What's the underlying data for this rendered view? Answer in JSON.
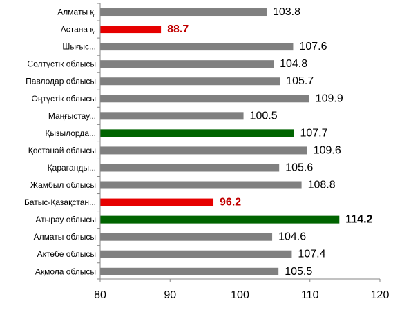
{
  "chart_data": {
    "type": "bar",
    "orientation": "horizontal",
    "title": "",
    "xlabel": "",
    "ylabel": "",
    "xlim": [
      80,
      120
    ],
    "xticks": [
      80,
      90,
      100,
      110,
      120
    ],
    "grid": false,
    "legend": "none",
    "categories": [
      "Алматы қ.",
      "Астана қ.",
      "Шығыс...",
      "Солтүстік облысы",
      "Павлодар облысы",
      "Оңтүстік облысы",
      "Маңғыстау...",
      "Қызылорда...",
      "Қостанай облысы",
      "Қарағанды...",
      "Жамбыл облысы",
      "Батыс-Қазақстан...",
      "Атырау облысы",
      "Алматы облысы",
      "Ақтөбе облысы",
      "Ақмола облысы"
    ],
    "values": [
      103.8,
      88.7,
      107.6,
      104.8,
      105.7,
      109.9,
      100.5,
      107.7,
      109.6,
      105.6,
      108.8,
      96.2,
      114.2,
      104.6,
      107.4,
      105.5
    ],
    "value_labels": [
      "103.8",
      "88.7",
      "107.6",
      "104.8",
      "105.7",
      "109.9",
      "100.5",
      "107.7",
      "109.6",
      "105.6",
      "108.8",
      "96.2",
      "114.2",
      "104.6",
      "107.4",
      "105.5"
    ],
    "highlight": [
      "default",
      "low",
      "default",
      "default",
      "default",
      "default",
      "default",
      "high",
      "default",
      "default",
      "default",
      "low",
      "high",
      "default",
      "default",
      "default"
    ],
    "label_style": [
      "normal",
      "bold-red",
      "normal",
      "normal",
      "normal",
      "normal",
      "normal",
      "normal",
      "normal",
      "normal",
      "normal",
      "bold-red",
      "bold",
      "normal",
      "normal",
      "normal"
    ],
    "colors": {
      "default": "#808080",
      "low": "#e60000",
      "high": "#006400",
      "label_red": "#c00000",
      "label_normal": "#000000",
      "axis": "#868686"
    }
  }
}
